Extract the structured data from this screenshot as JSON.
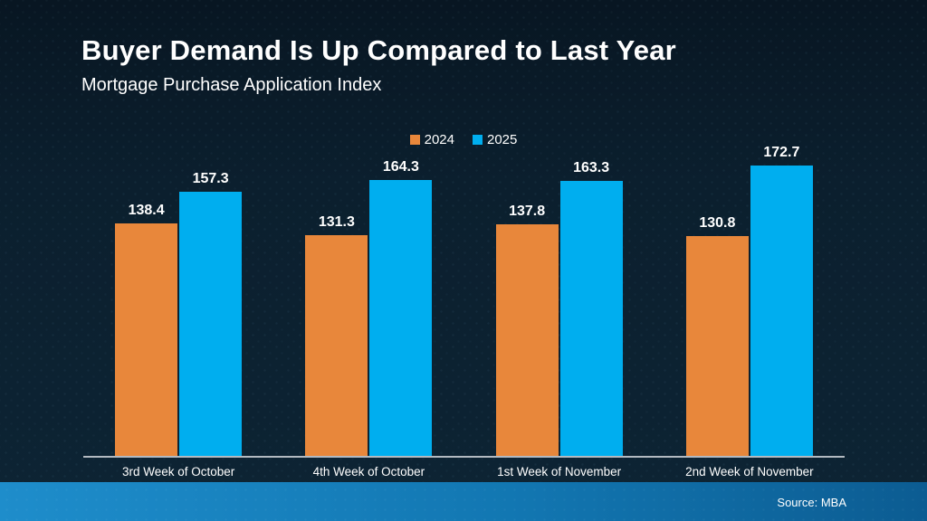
{
  "header": {
    "title": "Buyer Demand Is Up Compared to Last Year",
    "subtitle": "Mortgage Purchase Application Index"
  },
  "chart_data": {
    "type": "bar",
    "title": "Buyer Demand Is Up Compared to Last Year",
    "subtitle": "Mortgage Purchase Application Index",
    "categories": [
      "3rd Week of October",
      "4th Week of October",
      "1st Week of November",
      "2nd Week of November"
    ],
    "series": [
      {
        "name": "2024",
        "color": "#E8873B",
        "values": [
          138.4,
          131.3,
          137.8,
          130.8
        ]
      },
      {
        "name": "2025",
        "color": "#00AEEF",
        "values": [
          157.3,
          164.3,
          163.3,
          172.7
        ]
      }
    ],
    "xlabel": "",
    "ylabel": "",
    "ylim": [
      0,
      185
    ],
    "grid": false,
    "legend_position": "top-center",
    "value_labels": true,
    "value_label_format": "one-decimal"
  },
  "footer": {
    "source": "Source: MBA"
  },
  "colors": {
    "background_top": "#081622",
    "background_bottom": "#0d2434",
    "bar_2024": "#E8873B",
    "bar_2025": "#00AEEF",
    "axis_line": "#B3BAC1",
    "text": "#FFFFFF",
    "footer_gradient_left": "#1E8DCB",
    "footer_gradient_mid": "#1277B2",
    "footer_gradient_right": "#0C5C92"
  }
}
